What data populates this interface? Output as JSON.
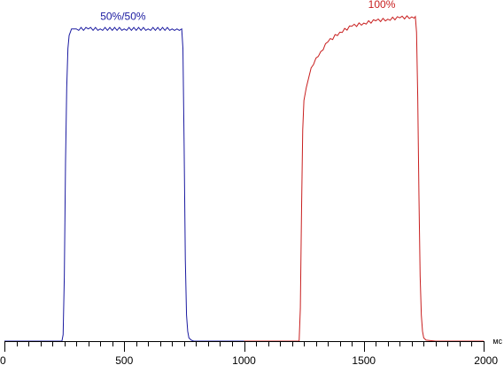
{
  "chart_data": {
    "type": "line",
    "title": "",
    "xlabel": "",
    "ylabel": "",
    "x_unit": "мс",
    "xlim": [
      0,
      2000
    ],
    "ylim": [
      0,
      100
    ],
    "x_major_ticks": [
      0,
      500,
      1000,
      1500,
      2000
    ],
    "x_tick_labels": [
      "0",
      "500",
      "1000",
      "1500",
      "2000"
    ],
    "x_minor_tick_step": 50,
    "grid": false,
    "legend": "none",
    "series": [
      {
        "name": "50%/50%",
        "color": "#1a1aa0",
        "x": [
          0,
          240,
          245,
          250,
          255,
          260,
          265,
          270,
          275,
          280,
          290,
          300,
          350,
          400,
          500,
          600,
          700,
          720,
          740,
          745,
          750,
          755,
          760,
          765,
          770,
          780,
          790,
          800,
          900,
          1000
        ],
        "y": [
          0,
          0,
          2,
          20,
          55,
          78,
          90,
          94,
          95,
          96,
          96,
          96,
          96,
          96,
          96,
          96,
          96,
          96,
          96,
          90,
          60,
          25,
          8,
          3,
          1,
          0.3,
          0,
          0,
          0,
          0
        ]
      },
      {
        "name": "100%",
        "color": "#c81e1e",
        "x": [
          1000,
          1100,
          1200,
          1230,
          1235,
          1240,
          1245,
          1250,
          1260,
          1270,
          1280,
          1300,
          1320,
          1350,
          1400,
          1450,
          1500,
          1550,
          1600,
          1650,
          1700,
          1715,
          1720,
          1725,
          1730,
          1735,
          1740,
          1745,
          1750,
          1760,
          1800,
          1900,
          2000
        ],
        "y": [
          0,
          0,
          0,
          0,
          10,
          40,
          65,
          74,
          78,
          81,
          84,
          87,
          89,
          92,
          95,
          96.8,
          97.8,
          98.5,
          99.0,
          99.4,
          99.7,
          99.8,
          95,
          75,
          45,
          20,
          8,
          3,
          1,
          0.3,
          0,
          0,
          0
        ]
      }
    ],
    "annotations": [
      {
        "text": "50%/50%",
        "series": 0,
        "at_x": 495,
        "color": "#1a1aa0"
      },
      {
        "text": "100%",
        "series": 1,
        "at_x": 1575,
        "color": "#c81e1e"
      }
    ]
  }
}
